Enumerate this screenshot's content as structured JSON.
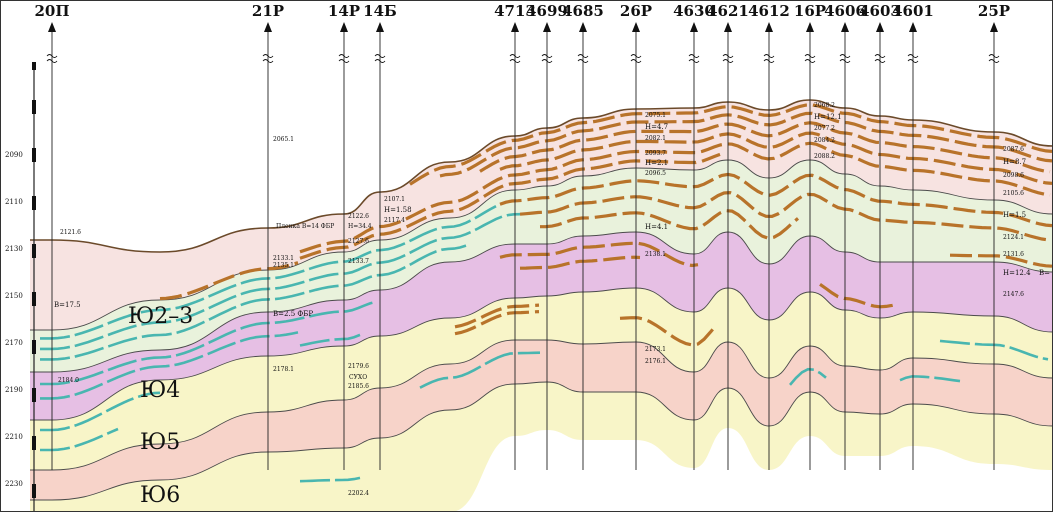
{
  "wells": [
    {
      "id": "w20",
      "label": "20П"
    },
    {
      "id": "w21",
      "label": "21Р"
    },
    {
      "id": "w14r",
      "label": "14Р"
    },
    {
      "id": "w14b",
      "label": "14Б"
    },
    {
      "id": "w4713",
      "label": "4713"
    },
    {
      "id": "w4699",
      "label": "4699"
    },
    {
      "id": "w4685",
      "label": "4685"
    },
    {
      "id": "w26",
      "label": "26Р"
    },
    {
      "id": "w4630",
      "label": "4630"
    },
    {
      "id": "w4621",
      "label": "4621"
    },
    {
      "id": "w4612",
      "label": "4612"
    },
    {
      "id": "w16",
      "label": "16Р"
    },
    {
      "id": "w4606",
      "label": "4606"
    },
    {
      "id": "w4603",
      "label": "4603"
    },
    {
      "id": "w4601",
      "label": "4601"
    },
    {
      "id": "w25",
      "label": "25Р"
    }
  ],
  "depth_scale": [
    "2090",
    "2110",
    "2130",
    "2150",
    "2170",
    "2190",
    "2210",
    "2230"
  ],
  "zones": [
    "Ю2–3",
    "Ю4",
    "Ю5",
    "Ю6"
  ],
  "annotations": {
    "w20_top": "2121.6",
    "w20_b": "В=17.5",
    "w20_base": "2184.0",
    "w21_top": "2065.1",
    "w21_a": "2133.1",
    "w21_b": "2135.1",
    "w21_film": "Пленка В=14 ФБР",
    "w21_fbr": "В=2.5 ФБР",
    "w21_c": "2178.1",
    "w14_a": "2122.6",
    "w14_b": "Н=34.4",
    "w14_c": "2127.6",
    "w14_d": "2133.7",
    "w14_e": "2179.6",
    "w14_dry": "СУХО",
    "w14_f": "2185.6",
    "w14_g": "2202.4",
    "w14b_a": "2107.1",
    "w14b_b": "Н=1.58",
    "w14b_c": "2117.4",
    "w26_a": "2075.1",
    "w26_b": "Н=4.7",
    "w26_c": "2082.1",
    "w26_d": "2093.7",
    "w26_e": "Н=2.1",
    "w26_f": "2096.5",
    "w26_g": "Н=4.1",
    "w26_h": "2138.1",
    "w26_i": "2173.1",
    "w26_j": "2176.1",
    "w16_a": "2068.2",
    "w16_b": "Н=12.1",
    "w16_c": "2077.2",
    "w16_d": "2084.2",
    "w16_e": "2088.2",
    "w25_a": "2087.6",
    "w25_b": "Н=8.7",
    "w25_c": "2098.6",
    "w25_d": "2105.6",
    "w25_e": "Н=1.5",
    "w25_f": "2124.1",
    "w25_g": "2131.6",
    "w25_h": "Н=12.4",
    "w25_i": "В=",
    "w25_j": "2147.6"
  },
  "colors": {
    "layer_pink": "#f7e3e1",
    "layer_green": "#e9f2dc",
    "layer_magenta": "#e6bfe4",
    "layer_yellow": "#f8f5c8",
    "layer_salmon": "#f7d3c9",
    "oil_brown": "#b8732a",
    "water_teal": "#49b6b0",
    "well_line": "#222222"
  }
}
